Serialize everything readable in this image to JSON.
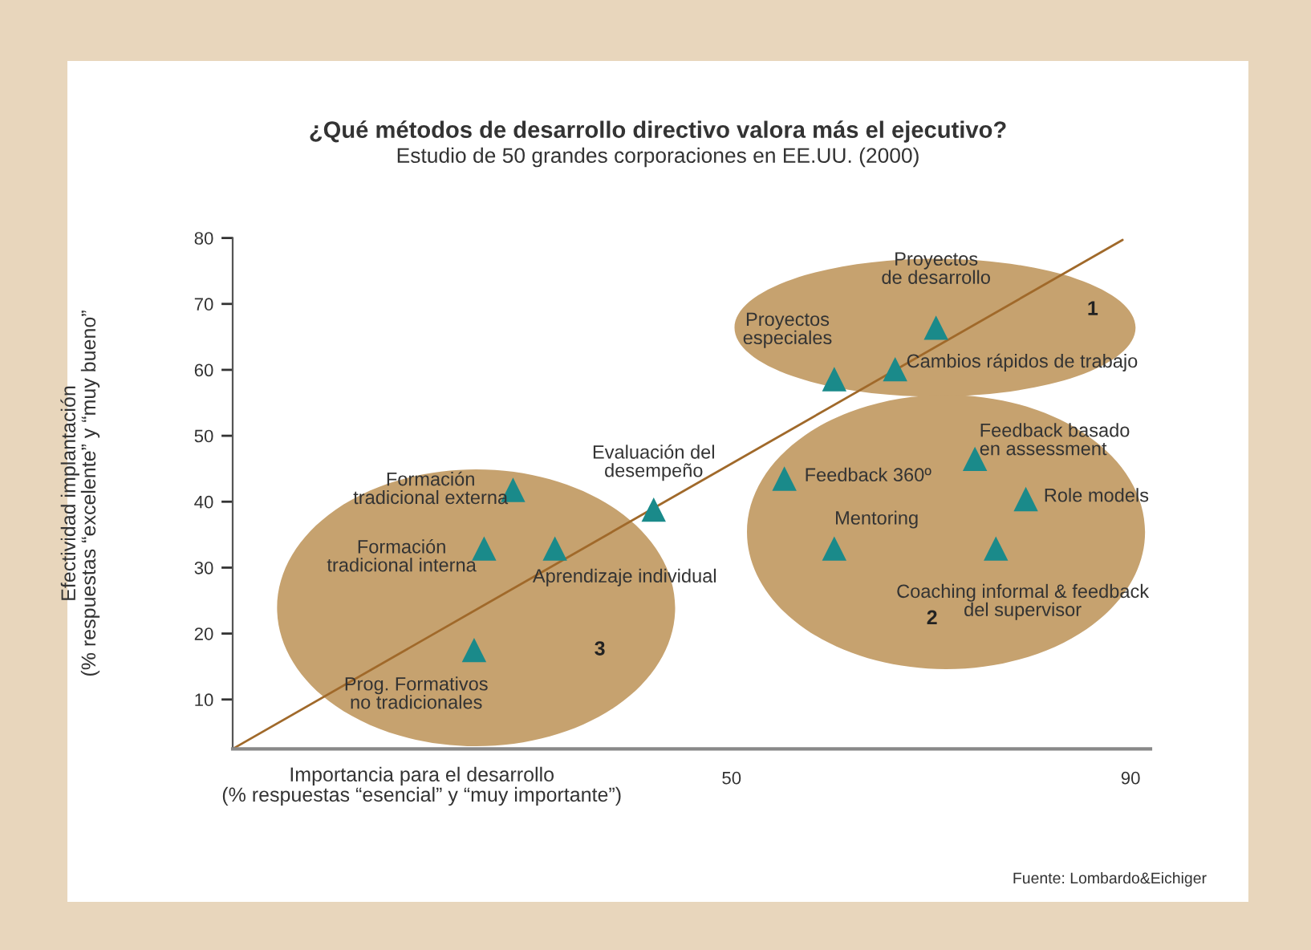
{
  "chart_data": {
    "type": "scatter",
    "title": "¿Qué métodos de desarrollo directivo valora más el ejecutivo?",
    "subtitle": "Estudio de 50 grandes corporaciones en EE.UU. (2000)",
    "xlabel": "Importancia para el desarrollo\n(% respuestas “esencial” y “muy importante”)",
    "ylabel": "Efectividad implantación\n(% respuestas “excelente” y “muy bueno”",
    "xlim": [
      0,
      92
    ],
    "ylim": [
      2.5,
      80
    ],
    "xticks": [
      50,
      90
    ],
    "yticks": [
      10,
      20,
      30,
      40,
      50,
      60,
      70,
      80
    ],
    "grid": false,
    "series": [
      {
        "marker": "triangle",
        "color": "#1a8a8a",
        "x": [
          28.1,
          25.2,
          32.3,
          42.2,
          24.2,
          70.5,
          60.3,
          66.4,
          74.4,
          55.3,
          79.5,
          60.3,
          76.5
        ],
        "values": [
          41.8,
          32.9,
          32.9,
          38.8,
          17.5,
          66.4,
          58.6,
          60.1,
          46.5,
          43.5,
          40.4,
          32.9,
          32.9
        ]
      },
      {
        "type": "line",
        "color": "#a0692a",
        "x": [
          0,
          89.2
        ],
        "values": [
          2.5,
          79.7
        ]
      }
    ],
    "annotations": [
      {
        "text": "Formación\ntradicional externa",
        "x": 28.1,
        "y": 41.8
      },
      {
        "text": "Formación\ntradicional interna",
        "x": 25.2,
        "y": 32.9
      },
      {
        "text": "Aprendizaje individual",
        "x": 32.3,
        "y": 32.9
      },
      {
        "text": "Evaluación del\ndesempeño",
        "x": 42.2,
        "y": 38.8
      },
      {
        "text": "Prog. Formativos\nno tradicionales",
        "x": 24.2,
        "y": 17.5
      },
      {
        "text": "Proyectos\nde desarrollo",
        "x": 70.5,
        "y": 66.4
      },
      {
        "text": "Proyectos\nespeciales",
        "x": 60.3,
        "y": 58.6
      },
      {
        "text": "Cambios rápidos de trabajo",
        "x": 66.4,
        "y": 60.1
      },
      {
        "text": "Feedback basado\nen assessment",
        "x": 74.4,
        "y": 46.5
      },
      {
        "text": "Feedback 360º",
        "x": 55.3,
        "y": 43.5
      },
      {
        "text": "Role models",
        "x": 79.5,
        "y": 40.4
      },
      {
        "text": "Mentoring",
        "x": 60.3,
        "y": 32.9
      },
      {
        "text": "Coaching informal & feedback\ndel supervisor",
        "x": 76.5,
        "y": 32.9
      },
      "1",
      "2",
      "3",
      "Fuente: Lombardo&Eichiger"
    ]
  }
}
